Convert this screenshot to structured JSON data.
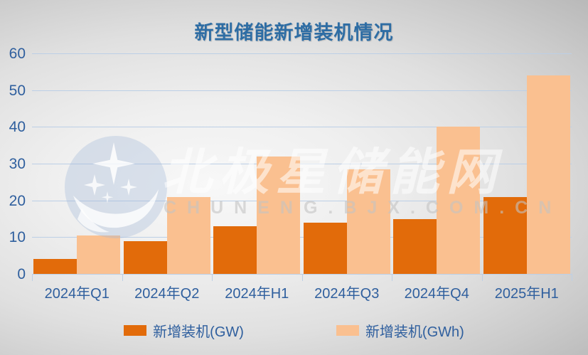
{
  "title": "新型储能新增装机情况",
  "watermark": {
    "cn": "北极星储能网",
    "en": "CHUNENG.BJX.COM.CN",
    "logo": "moon-and-stars-icon"
  },
  "colors": {
    "series_gw": "#E26B0A",
    "series_gwh": "#FAC090",
    "title_blue": "#2E6DA4",
    "axis_blue": "#2F5F9E",
    "gridline": "#BCCFE6"
  },
  "chart_data": {
    "type": "bar",
    "title": "新型储能新增装机情况",
    "categories": [
      "2024年Q1",
      "2024年Q2",
      "2024年H1",
      "2024年Q3",
      "2024年Q4",
      "2025年H1"
    ],
    "series": [
      {
        "name": "新增装机(GW)",
        "color": "#E26B0A",
        "values": [
          4,
          9,
          13,
          14,
          15,
          21
        ]
      },
      {
        "name": "新增装机(GWh)",
        "color": "#FAC090",
        "values": [
          10.5,
          21,
          32,
          28.5,
          40,
          54
        ]
      }
    ],
    "xlabel": "",
    "ylabel": "",
    "ylim": [
      0,
      60
    ],
    "yticks": [
      0,
      10,
      20,
      30,
      40,
      50,
      60
    ],
    "grid": true,
    "legend_position": "bottom"
  }
}
